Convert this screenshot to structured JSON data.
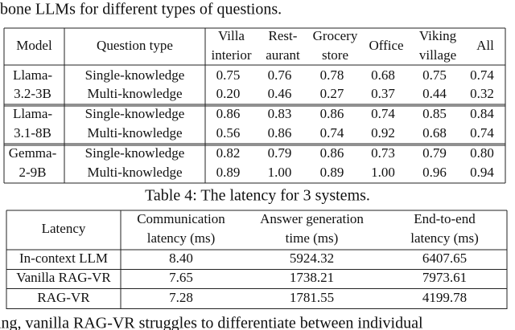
{
  "paragraph_top": "bone LLMs for different types of questions.",
  "table1": {
    "header": [
      [
        "Model"
      ],
      [
        "Question type"
      ],
      [
        "Villa",
        "interior"
      ],
      [
        "Rest-",
        "aurant"
      ],
      [
        "Grocery",
        "store"
      ],
      [
        "Office"
      ],
      [
        "Viking",
        "village"
      ],
      [
        "All"
      ]
    ],
    "groups": [
      {
        "model": [
          "Llama-",
          "3.2-3B"
        ],
        "rows": [
          [
            "Single-knowledge",
            "0.75",
            "0.76",
            "0.78",
            "0.68",
            "0.75",
            "0.74"
          ],
          [
            "Multi-knowledge",
            "0.20",
            "0.46",
            "0.27",
            "0.37",
            "0.44",
            "0.32"
          ]
        ]
      },
      {
        "model": [
          "Llama-",
          "3.1-8B"
        ],
        "rows": [
          [
            "Single-knowledge",
            "0.86",
            "0.83",
            "0.86",
            "0.74",
            "0.85",
            "0.84"
          ],
          [
            "Multi-knowledge",
            "0.56",
            "0.86",
            "0.74",
            "0.92",
            "0.68",
            "0.74"
          ]
        ]
      },
      {
        "model": [
          "Gemma-",
          "2-9B"
        ],
        "rows": [
          [
            "Single-knowledge",
            "0.82",
            "0.79",
            "0.86",
            "0.73",
            "0.79",
            "0.80"
          ],
          [
            "Multi-knowledge",
            "0.89",
            "1.00",
            "0.89",
            "1.00",
            "0.96",
            "0.94"
          ]
        ]
      }
    ]
  },
  "caption2": "Table 4: The latency for 3 systems.",
  "table2": {
    "header": [
      [
        "Latency"
      ],
      [
        "Communication",
        "latency (ms)"
      ],
      [
        "Answer generation",
        "time (ms)"
      ],
      [
        "End-to-end",
        "latency (ms)"
      ]
    ],
    "rows": [
      [
        "In-context LLM",
        "8.40",
        "5924.32",
        "6407.65"
      ],
      [
        "Vanilla RAG-VR",
        "7.65",
        "1738.21",
        "7973.61"
      ],
      [
        "RAG-VR",
        "7.28",
        "1781.55",
        "4199.78"
      ]
    ]
  },
  "paragraph_bottom": "ing, vanilla RAG-VR struggles to differentiate between individual"
}
